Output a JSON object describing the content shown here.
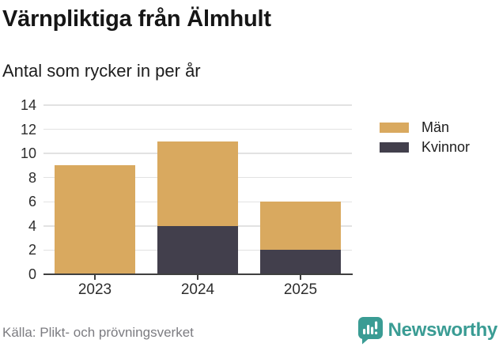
{
  "chart_data": {
    "type": "bar",
    "stacked": true,
    "title": "Värnpliktiga från Älmhult",
    "subtitle": "Antal som rycker in per år",
    "categories": [
      "2023",
      "2024",
      "2025"
    ],
    "series": [
      {
        "name": "Män",
        "color": "#d9a95f",
        "values": [
          9,
          7,
          4
        ]
      },
      {
        "name": "Kvinnor",
        "color": "#423f4c",
        "values": [
          0,
          4,
          2
        ]
      }
    ],
    "stack_bottom_to_top": [
      "Kvinnor",
      "Män"
    ],
    "stack_totals": [
      9,
      11,
      6
    ],
    "ylim": [
      0,
      14
    ],
    "yticks": [
      0,
      2,
      4,
      6,
      8,
      10,
      12,
      14
    ],
    "xlabel": "",
    "ylabel": "",
    "grid": "horizontal",
    "legend_position": "top-right",
    "colors": {
      "axis": "#3f3f3f",
      "grid": "#e2e2e2"
    }
  },
  "footer": {
    "source": "Källa: Plikt- och prövningsverket"
  },
  "brand": {
    "wordmark": "Newsworthy",
    "color": "#3a9c94",
    "icon": "speech-bubble-bar-chart-exclamation"
  }
}
